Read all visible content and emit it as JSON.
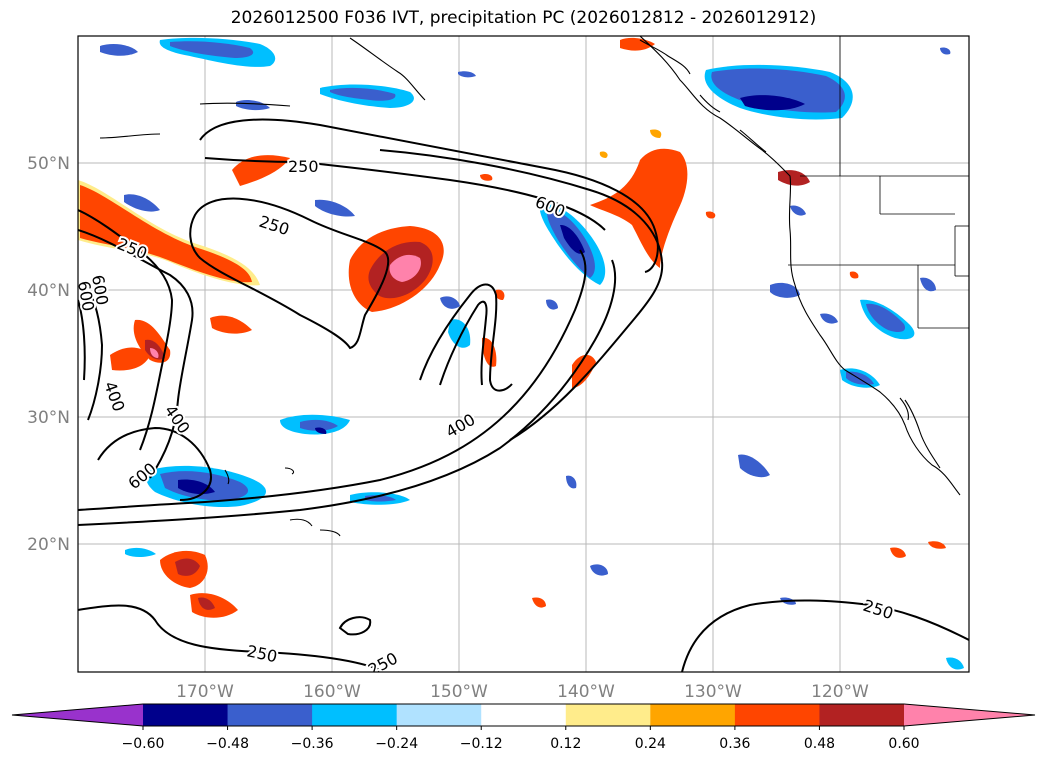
{
  "title": "2026012500 F036 IVT, precipitation PC (2026012812 - 2026012912)",
  "map": {
    "lat_ticks": [
      "50°N",
      "40°N",
      "30°N",
      "20°N"
    ],
    "lon_ticks": [
      "170°W",
      "160°W",
      "150°W",
      "140°W",
      "130°W",
      "120°W"
    ],
    "contour_labels": [
      "250",
      "250",
      "250",
      "600",
      "600",
      "400",
      "400",
      "400",
      "600",
      "250",
      "250",
      "250",
      "600"
    ]
  },
  "colorbar": {
    "ticks": [
      "−0.60",
      "−0.48",
      "−0.36",
      "−0.24",
      "−0.12",
      "0.12",
      "0.24",
      "0.36",
      "0.48",
      "0.60"
    ],
    "colors": [
      "#9932cc",
      "#00008b",
      "#3a5fcd",
      "#00bfff",
      "#b0e2ff",
      "#ffffff",
      "#ffec8b",
      "#ffa500",
      "#ff4500",
      "#b22222",
      "#ff82ab"
    ]
  }
}
